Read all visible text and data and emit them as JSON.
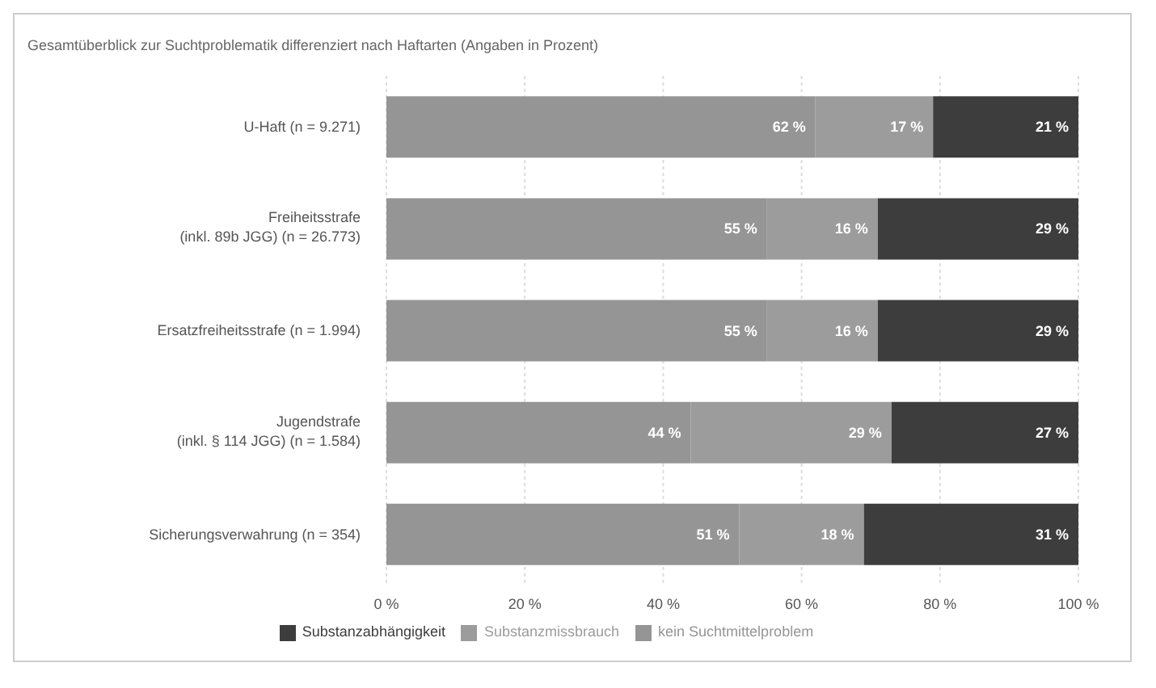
{
  "chart_data": {
    "type": "bar",
    "orientation": "horizontal",
    "stacked": true,
    "title": "Gesamtüberblick zur Suchtproblematik differenziert nach Haftarten (Angaben in Prozent)",
    "categories": [
      "U-Haft (n = 9.271)",
      "Freiheitsstrafe\n(inkl. 89b JGG) (n = 26.773)",
      "Ersatzfreiheitsstrafe (n = 1.994)",
      "Jugendstrafe\n(inkl. § 114 JGG) (n = 1.584)",
      "Sicherungsverwahrung (n = 354)"
    ],
    "series": [
      {
        "name": "kein Suchtmittelproblem",
        "color": "#959595",
        "values": [
          62,
          55,
          55,
          44,
          51
        ],
        "value_labels": [
          "62 %",
          "55 %",
          "55 %",
          "44 %",
          "51 %"
        ]
      },
      {
        "name": "Substanzmissbrauch",
        "color": "#9c9c9c",
        "values": [
          17,
          16,
          16,
          29,
          18
        ],
        "value_labels": [
          "17 %",
          "16 %",
          "16 %",
          "29 %",
          "18 %"
        ]
      },
      {
        "name": "Substanzabhängigkeit",
        "color": "#3d3d3d",
        "values": [
          21,
          29,
          29,
          27,
          31
        ],
        "value_labels": [
          "21 %",
          "29 %",
          "29 %",
          "27 %",
          "31 %"
        ]
      }
    ],
    "xlim": [
      0,
      100
    ],
    "xticks": [
      {
        "value": 0,
        "label": "0 %"
      },
      {
        "value": 20,
        "label": "20 %"
      },
      {
        "value": 40,
        "label": "40 %"
      },
      {
        "value": 60,
        "label": "60 %"
      },
      {
        "value": 80,
        "label": "80 %"
      },
      {
        "value": 100,
        "label": "100 %"
      }
    ],
    "grid": "x",
    "legend": "bottom"
  }
}
